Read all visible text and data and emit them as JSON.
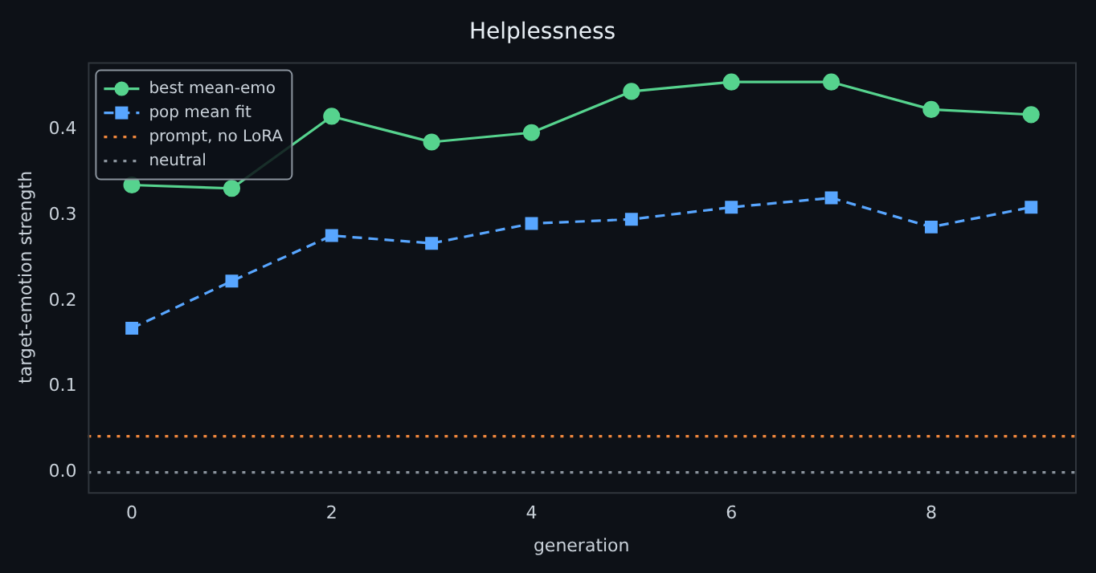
{
  "chart_data": {
    "type": "line",
    "title": "Helplessness",
    "xlabel": "generation",
    "ylabel": "target-emotion strength",
    "x": [
      0,
      1,
      2,
      3,
      4,
      5,
      6,
      7,
      8,
      9
    ],
    "series": [
      {
        "name": "best mean-emo",
        "color": "#56d38e",
        "values": [
          0.335,
          0.331,
          0.415,
          0.385,
          0.396,
          0.444,
          0.455,
          0.455,
          0.423,
          0.417
        ],
        "marker": "circle",
        "line_style": "solid"
      },
      {
        "name": "pop mean fit",
        "color": "#58a6ff",
        "values": [
          0.168,
          0.223,
          0.276,
          0.267,
          0.29,
          0.295,
          0.309,
          0.32,
          0.286,
          0.309
        ],
        "marker": "square",
        "line_style": "dashed"
      }
    ],
    "ref_lines": [
      {
        "axis": "y",
        "value": 0.042,
        "label": "prompt, no LoRA",
        "color": "#f0883e",
        "line_style": "dotted"
      },
      {
        "axis": "y",
        "value": 0,
        "label": "neutral",
        "color": "#8b949e",
        "line_style": "dotted"
      }
    ],
    "xlim": [
      -0.44,
      9.44
    ],
    "xticks": [
      0,
      2,
      4,
      6,
      8
    ],
    "ylim": [
      -0.023,
      0.478
    ],
    "yticks": [
      {
        "value": 0,
        "label": "0.0"
      },
      {
        "value": 0.1,
        "label": "0.1"
      },
      {
        "value": 0.2,
        "label": "0.2"
      },
      {
        "value": 0.3,
        "label": "0.3"
      },
      {
        "value": 0.4,
        "label": "0.4"
      }
    ],
    "grid": false,
    "legend": "top left"
  }
}
